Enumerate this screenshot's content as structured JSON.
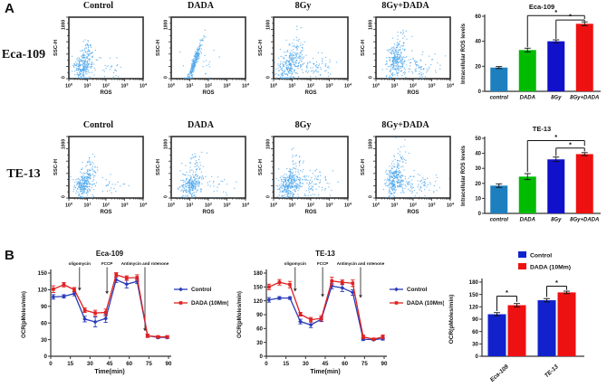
{
  "panelA": {
    "label": "A",
    "rows": [
      {
        "row_label": "Eca-109",
        "conditions": [
          "Control",
          "DADA",
          "8Gy",
          "8Gy+DADA"
        ]
      },
      {
        "row_label": "TE-13",
        "conditions": [
          "Control",
          "DADA",
          "8Gy",
          "8Gy+DADA"
        ]
      }
    ]
  },
  "panelB": {
    "label": "B"
  },
  "flow_axis": {
    "y_label": "SSC-H",
    "y_max_label": "1000",
    "y_min_label": "0",
    "x_label": "ROS",
    "x_decades": [
      0,
      1,
      2,
      3,
      4
    ]
  },
  "colors": {
    "scatter": "#4FA8EC",
    "bar_control": "#1E7FBF",
    "bar_dada": "#00BB00",
    "bar_8gy": "#1111CC",
    "bar_8gydada": "#EE1111",
    "line_control": "#2A3CB8",
    "line_dada": "#E02020",
    "barB_control": "#1122CC",
    "barB_dada": "#EE1111"
  },
  "chart_data": [
    {
      "id": "flow-eca109-control",
      "type": "flow-scatter",
      "row": "Eca-109",
      "condition": "Control",
      "xscale": "log10",
      "xlim": [
        1,
        10000
      ],
      "ylim": [
        0,
        1000
      ],
      "xlabel": "ROS",
      "ylabel": "SSC-H",
      "seed": 11,
      "clusters": [
        {
          "n": 230,
          "cx": 0.75,
          "cy": 190,
          "sx": 0.22,
          "sy": 95,
          "tx": 0.1,
          "ty": 60
        },
        {
          "n": 50,
          "cx": 1.05,
          "cy": 430,
          "sx": 0.15,
          "sy": 130
        },
        {
          "n": 28,
          "cx": 2.35,
          "cy": 160,
          "sx": 0.45,
          "sy": 90
        }
      ]
    },
    {
      "id": "flow-eca109-dada",
      "type": "flow-scatter",
      "row": "Eca-109",
      "condition": "DADA",
      "xscale": "log10",
      "xlim": [
        1,
        10000
      ],
      "ylim": [
        0,
        1000
      ],
      "xlabel": "ROS",
      "ylabel": "SSC-H",
      "seed": 22,
      "clusters": [
        {
          "n": 250,
          "cx": 1.25,
          "cy": 260,
          "sx": 0.06,
          "sy": 30,
          "tx": 0.2,
          "ty": 170
        },
        {
          "n": 20,
          "cx": 1.6,
          "cy": 250,
          "sx": 0.4,
          "sy": 150
        }
      ]
    },
    {
      "id": "flow-eca109-8gy",
      "type": "flow-scatter",
      "row": "Eca-109",
      "condition": "8Gy",
      "xscale": "log10",
      "xlim": [
        1,
        10000
      ],
      "ylim": [
        0,
        1000
      ],
      "xlabel": "ROS",
      "ylabel": "SSC-H",
      "seed": 33,
      "clusters": [
        {
          "n": 260,
          "cx": 0.85,
          "cy": 210,
          "sx": 0.28,
          "sy": 100,
          "tx": 0.18,
          "ty": 110
        },
        {
          "n": 80,
          "cx": 2.1,
          "cy": 200,
          "sx": 0.55,
          "sy": 110
        },
        {
          "n": 30,
          "cx": 1.3,
          "cy": 560,
          "sx": 0.25,
          "sy": 130
        }
      ]
    },
    {
      "id": "flow-eca109-8gydada",
      "type": "flow-scatter",
      "row": "Eca-109",
      "condition": "8Gy+DADA",
      "xscale": "log10",
      "xlim": [
        1,
        10000
      ],
      "ylim": [
        0,
        1000
      ],
      "xlabel": "ROS",
      "ylabel": "SSC-H",
      "seed": 44,
      "clusters": [
        {
          "n": 240,
          "cx": 1.05,
          "cy": 280,
          "sx": 0.22,
          "sy": 120,
          "tx": 0.1,
          "ty": 80
        },
        {
          "n": 90,
          "cx": 2.15,
          "cy": 190,
          "sx": 0.55,
          "sy": 100
        },
        {
          "n": 25,
          "cx": 1.35,
          "cy": 620,
          "sx": 0.3,
          "sy": 120
        }
      ]
    },
    {
      "id": "flow-te13-control",
      "type": "flow-scatter",
      "row": "TE-13",
      "condition": "Control",
      "xscale": "log10",
      "xlim": [
        1,
        10000
      ],
      "ylim": [
        0,
        1000
      ],
      "xlabel": "ROS",
      "ylabel": "SSC-H",
      "seed": 55,
      "clusters": [
        {
          "n": 240,
          "cx": 0.8,
          "cy": 210,
          "sx": 0.24,
          "sy": 90,
          "tx": 0.08,
          "ty": 50
        },
        {
          "n": 55,
          "cx": 1.15,
          "cy": 470,
          "sx": 0.18,
          "sy": 140
        },
        {
          "n": 25,
          "cx": 2.4,
          "cy": 200,
          "sx": 0.42,
          "sy": 80
        }
      ]
    },
    {
      "id": "flow-te13-dada",
      "type": "flow-scatter",
      "row": "TE-13",
      "condition": "DADA",
      "xscale": "log10",
      "xlim": [
        1,
        10000
      ],
      "ylim": [
        0,
        1000
      ],
      "xlabel": "ROS",
      "ylabel": "SSC-H",
      "seed": 66,
      "clusters": [
        {
          "n": 230,
          "cx": 1.05,
          "cy": 220,
          "sx": 0.24,
          "sy": 95,
          "tx": 0.08,
          "ty": 50
        },
        {
          "n": 45,
          "cx": 1.35,
          "cy": 480,
          "sx": 0.2,
          "sy": 140
        },
        {
          "n": 28,
          "cx": 2.5,
          "cy": 210,
          "sx": 0.45,
          "sy": 90
        }
      ]
    },
    {
      "id": "flow-te13-8gy",
      "type": "flow-scatter",
      "row": "TE-13",
      "condition": "8Gy",
      "xscale": "log10",
      "xlim": [
        1,
        10000
      ],
      "ylim": [
        0,
        1000
      ],
      "xlabel": "ROS",
      "ylabel": "SSC-H",
      "seed": 77,
      "clusters": [
        {
          "n": 260,
          "cx": 0.8,
          "cy": 210,
          "sx": 0.26,
          "sy": 100,
          "tx": 0.1,
          "ty": 60
        },
        {
          "n": 110,
          "cx": 1.95,
          "cy": 230,
          "sx": 0.65,
          "sy": 110
        },
        {
          "n": 50,
          "cx": 1.25,
          "cy": 540,
          "sx": 0.3,
          "sy": 150
        }
      ]
    },
    {
      "id": "flow-te13-8gydada",
      "type": "flow-scatter",
      "row": "TE-13",
      "condition": "8Gy+DADA",
      "xscale": "log10",
      "xlim": [
        1,
        10000
      ],
      "ylim": [
        0,
        1000
      ],
      "xlabel": "ROS",
      "ylabel": "SSC-H",
      "seed": 88,
      "clusters": [
        {
          "n": 240,
          "cx": 1.0,
          "cy": 300,
          "sx": 0.2,
          "sy": 120,
          "tx": 0.08,
          "ty": 70
        },
        {
          "n": 100,
          "cx": 2.05,
          "cy": 220,
          "sx": 0.6,
          "sy": 100
        },
        {
          "n": 40,
          "cx": 1.3,
          "cy": 600,
          "sx": 0.25,
          "sy": 130
        }
      ]
    },
    {
      "id": "ros-eca109",
      "type": "bar",
      "title": "Eca-109",
      "ylabel": "Intracellular ROS levels",
      "categories": [
        "control",
        "DADA",
        "8Gy",
        "8Gy+DADA"
      ],
      "values": [
        19,
        33,
        40,
        54
      ],
      "errors": [
        0.8,
        1.5,
        1.2,
        1.5
      ],
      "bar_colors": [
        "#1E7FBF",
        "#00BB00",
        "#1111CC",
        "#EE1111"
      ],
      "ylim": [
        0,
        60
      ],
      "yticks": [
        0,
        20,
        40,
        60
      ],
      "significance": [
        {
          "i1": 2,
          "i2": 3,
          "y": 57,
          "leg1": 42,
          "leg2": 56,
          "star": "*"
        },
        {
          "i1": 1,
          "i2": 3,
          "y": 60.5,
          "leg1": 35.3,
          "leg2": 57.8,
          "star": "*"
        }
      ]
    },
    {
      "id": "ros-te13",
      "type": "bar",
      "title": "TE-13",
      "ylabel": "Intracellular ROS levels",
      "categories": [
        "control",
        "DADA",
        "8Gy",
        "8Gy+DADA"
      ],
      "values": [
        18.5,
        24.5,
        36,
        39.5
      ],
      "errors": [
        1.2,
        2,
        1.5,
        1
      ],
      "bar_colors": [
        "#1E7FBF",
        "#00BB00",
        "#1111CC",
        "#EE1111"
      ],
      "ylim": [
        0,
        50
      ],
      "yticks": [
        0,
        10,
        20,
        30,
        40,
        50
      ],
      "significance": [
        {
          "i1": 2,
          "i2": 3,
          "y": 43.5,
          "leg1": 38.3,
          "leg2": 41.3,
          "star": "*"
        },
        {
          "i1": 1,
          "i2": 3,
          "y": 48.5,
          "leg1": 27.5,
          "leg2": 45,
          "star": "*"
        }
      ]
    },
    {
      "id": "ocr-eca109",
      "type": "line",
      "title": "Eca-109",
      "xlabel": "Time(min)",
      "ylabel": "OCR(pMoles/min)",
      "xlim": [
        0,
        90
      ],
      "xticks": [
        0,
        15,
        30,
        45,
        60,
        75,
        90
      ],
      "ylim": [
        0,
        150
      ],
      "yticks": [
        0,
        30,
        60,
        90,
        120,
        150
      ],
      "x": [
        2,
        10,
        18,
        26,
        34,
        42,
        50,
        58,
        66,
        74,
        82,
        89
      ],
      "series": [
        {
          "name": "Control",
          "color": "#2A3CB8",
          "marker": "diamond",
          "values": [
            107,
            108,
            113,
            67,
            62,
            68,
            138,
            130,
            135,
            37,
            34,
            34
          ],
          "errors": [
            4,
            3,
            4,
            5,
            9,
            7,
            5,
            7,
            4,
            3,
            2,
            2
          ]
        },
        {
          "name": "DADA (10Mm)",
          "color": "#E02020",
          "marker": "square",
          "values": [
            121,
            129,
            120,
            83,
            78,
            79,
            147,
            141,
            142,
            37,
            35,
            35
          ],
          "errors": [
            6,
            4,
            4,
            4,
            5,
            6,
            4,
            4,
            5,
            3,
            2,
            2
          ]
        }
      ],
      "annotations": [
        {
          "text": "oligomycin",
          "x": 22,
          "tip": 118
        },
        {
          "text": "FCCP",
          "x": 43,
          "tip": 112
        },
        {
          "text": "Antimycin and rotenone",
          "x": 72,
          "tip": 45
        }
      ]
    },
    {
      "id": "ocr-te13",
      "type": "line",
      "title": "TE-13",
      "xlabel": "Time(min)",
      "ylabel": "OCR(pMoles/min)",
      "xlim": [
        0,
        90
      ],
      "xticks": [
        0,
        15,
        30,
        45,
        60,
        75,
        90
      ],
      "ylim": [
        0,
        180
      ],
      "yticks": [
        0,
        30,
        60,
        90,
        120,
        150,
        180
      ],
      "x": [
        2,
        10,
        18,
        26,
        34,
        42,
        50,
        58,
        66,
        74,
        82,
        89
      ],
      "series": [
        {
          "name": "Control",
          "color": "#2A3CB8",
          "marker": "diamond",
          "values": [
            122,
            126,
            126,
            75,
            68,
            80,
            152,
            148,
            138,
            37,
            36,
            38
          ],
          "errors": [
            5,
            3,
            3,
            5,
            6,
            5,
            6,
            8,
            6,
            3,
            2,
            3
          ]
        },
        {
          "name": "DADA (10Mm)",
          "color": "#E02020",
          "marker": "square",
          "values": [
            150,
            160,
            155,
            91,
            79,
            82,
            163,
            160,
            158,
            42,
            37,
            42
          ],
          "errors": [
            6,
            6,
            7,
            4,
            5,
            6,
            8,
            5,
            7,
            4,
            2,
            4
          ]
        }
      ],
      "annotations": [
        {
          "text": "oligomycin",
          "x": 22,
          "tip": 140
        },
        {
          "text": "FCCP",
          "x": 43,
          "tip": 128
        },
        {
          "text": "Antimycin and rotenone",
          "x": 72,
          "tip": 126
        }
      ]
    },
    {
      "id": "ocr-bars",
      "type": "grouped-bar",
      "ylabel": "OCR(pMoles/min)",
      "categories": [
        "Eca-109",
        "TE-13"
      ],
      "series": [
        {
          "name": "Control",
          "color": "#1122CC",
          "values": [
            102,
            136
          ],
          "errors": [
            4,
            4
          ]
        },
        {
          "name": "DADA (10Mm)",
          "color": "#EE1111",
          "values": [
            124,
            155
          ],
          "errors": [
            4,
            3
          ]
        }
      ],
      "ylim": [
        0,
        180
      ],
      "yticks": [
        0,
        30,
        60,
        90,
        120,
        150,
        180
      ],
      "significance": [
        {
          "cat": 0,
          "y": 146,
          "leg1": 110,
          "leg2": 132,
          "star": "*"
        },
        {
          "cat": 1,
          "y": 170,
          "leg1": 144,
          "leg2": 161,
          "star": "*"
        }
      ]
    }
  ]
}
